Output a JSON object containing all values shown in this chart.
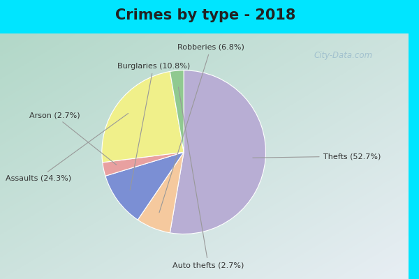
{
  "title": "Crimes by type - 2018",
  "title_fontsize": 15,
  "title_fontweight": "bold",
  "slices": [
    {
      "label": "Thefts (52.7%)",
      "value": 52.7,
      "color": "#b8aed4"
    },
    {
      "label": "Robberies (6.8%)",
      "value": 6.8,
      "color": "#f5c99e"
    },
    {
      "label": "Burglaries (10.8%)",
      "value": 10.8,
      "color": "#7b8fd4"
    },
    {
      "label": "Arson (2.7%)",
      "value": 2.7,
      "color": "#e8a0a0"
    },
    {
      "label": "Assaults (24.3%)",
      "value": 24.3,
      "color": "#f0f08a"
    },
    {
      "label": "Auto thefts (2.7%)",
      "value": 2.7,
      "color": "#90c990"
    }
  ],
  "startangle": 90,
  "counterclock": false,
  "bg_cyan": "#00e5ff",
  "bg_left_top": "#b2d8c8",
  "bg_right_bottom": "#e8eef4",
  "watermark": "City-Data.com",
  "watermark_color": "#9bbccc",
  "label_color": "#333333",
  "label_fontsize": 8.0,
  "title_color": "#222222"
}
